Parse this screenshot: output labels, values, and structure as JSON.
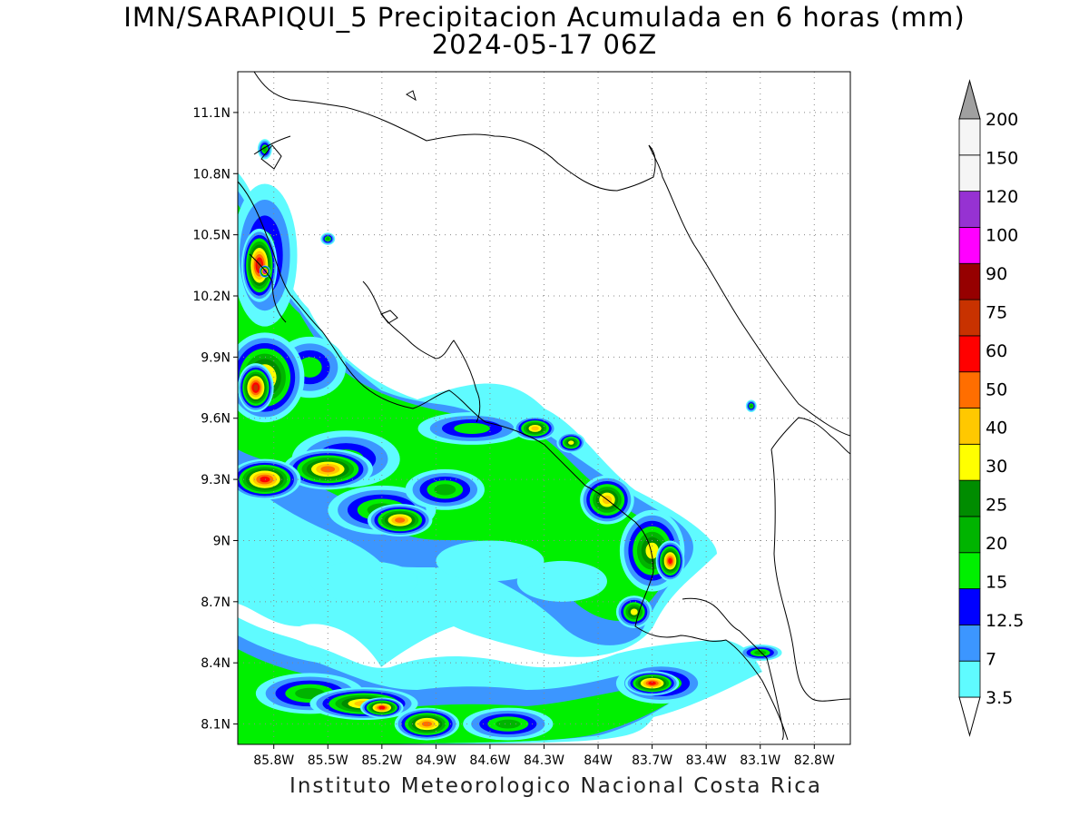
{
  "title": {
    "line1": "IMN/SARAPIQUI_5 Precipitacion Acumulada en 6 horas (mm)",
    "line2": "2024-05-17 06Z"
  },
  "footer": "Instituto Meteorologico Nacional Costa Rica",
  "axes": {
    "lon_range": [
      -86.0,
      -82.6
    ],
    "lat_range": [
      8.0,
      11.3
    ],
    "lon_ticks": [
      {
        "value": -85.8,
        "label": "85.8W"
      },
      {
        "value": -85.5,
        "label": "85.5W"
      },
      {
        "value": -85.2,
        "label": "85.2W"
      },
      {
        "value": -84.9,
        "label": "84.9W"
      },
      {
        "value": -84.6,
        "label": "84.6W"
      },
      {
        "value": -84.3,
        "label": "84.3W"
      },
      {
        "value": -84.0,
        "label": "84W"
      },
      {
        "value": -83.7,
        "label": "83.7W"
      },
      {
        "value": -83.4,
        "label": "83.4W"
      },
      {
        "value": -83.1,
        "label": "83.1W"
      },
      {
        "value": -82.8,
        "label": "82.8W"
      }
    ],
    "lat_ticks": [
      {
        "value": 8.1,
        "label": "8.1N"
      },
      {
        "value": 8.4,
        "label": "8.4N"
      },
      {
        "value": 8.7,
        "label": "8.7N"
      },
      {
        "value": 9.0,
        "label": "9N"
      },
      {
        "value": 9.3,
        "label": "9.3N"
      },
      {
        "value": 9.6,
        "label": "9.6N"
      },
      {
        "value": 9.9,
        "label": "9.9N"
      },
      {
        "value": 10.2,
        "label": "10.2N"
      },
      {
        "value": 10.5,
        "label": "10.5N"
      },
      {
        "value": 10.8,
        "label": "10.8N"
      },
      {
        "value": 11.1,
        "label": "11.1N"
      }
    ],
    "grid": "dotted"
  },
  "colorbar": {
    "orientation": "vertical",
    "placement": "right",
    "levels": [
      {
        "label": "3.5",
        "color": "#ffffff"
      },
      {
        "label": "7",
        "color": "#5ffbff"
      },
      {
        "label": "12.5",
        "color": "#3c96ff"
      },
      {
        "label": "15",
        "color": "#0000ff"
      },
      {
        "label": "20",
        "color": "#00f000"
      },
      {
        "label": "25",
        "color": "#00b400"
      },
      {
        "label": "30",
        "color": "#008c00"
      },
      {
        "label": "40",
        "color": "#ffff00"
      },
      {
        "label": "50",
        "color": "#ffc800"
      },
      {
        "label": "60",
        "color": "#ff6e00"
      },
      {
        "label": "75",
        "color": "#ff0000"
      },
      {
        "label": "90",
        "color": "#c83200"
      },
      {
        "label": "100",
        "color": "#960000"
      },
      {
        "label": "120",
        "color": "#ff00ff"
      },
      {
        "label": "150",
        "color": "#9632d2"
      },
      {
        "label": "200",
        "color": "#f5f5f5"
      }
    ],
    "top_triangle_color": "#a0a0a0",
    "bottom_triangle_color": "#ffffff"
  },
  "precip_cells": [
    {
      "lon": -85.85,
      "lat": 10.4,
      "rx": 0.18,
      "ry": 0.35,
      "level": 4
    },
    {
      "lon": -85.88,
      "lat": 10.35,
      "rx": 0.1,
      "ry": 0.18,
      "level": 11
    },
    {
      "lon": -85.85,
      "lat": 10.32,
      "rx": 0.03,
      "ry": 0.03,
      "level": 14
    },
    {
      "lon": -85.6,
      "lat": 9.85,
      "rx": 0.2,
      "ry": 0.15,
      "level": 4
    },
    {
      "lon": -85.85,
      "lat": 9.8,
      "rx": 0.22,
      "ry": 0.22,
      "level": 8
    },
    {
      "lon": -85.9,
      "lat": 9.75,
      "rx": 0.1,
      "ry": 0.12,
      "level": 11
    },
    {
      "lon": -85.4,
      "lat": 9.4,
      "rx": 0.3,
      "ry": 0.14,
      "level": 4
    },
    {
      "lon": -85.5,
      "lat": 9.35,
      "rx": 0.25,
      "ry": 0.1,
      "level": 9
    },
    {
      "lon": -85.85,
      "lat": 9.3,
      "rx": 0.2,
      "ry": 0.1,
      "level": 10
    },
    {
      "lon": -85.2,
      "lat": 9.15,
      "rx": 0.3,
      "ry": 0.12,
      "level": 5
    },
    {
      "lon": -85.1,
      "lat": 9.1,
      "rx": 0.18,
      "ry": 0.08,
      "level": 9
    },
    {
      "lon": -84.85,
      "lat": 9.25,
      "rx": 0.22,
      "ry": 0.1,
      "level": 5
    },
    {
      "lon": -84.7,
      "lat": 9.55,
      "rx": 0.3,
      "ry": 0.08,
      "level": 4
    },
    {
      "lon": -84.35,
      "lat": 9.55,
      "rx": 0.12,
      "ry": 0.06,
      "level": 8
    },
    {
      "lon": -84.15,
      "lat": 9.48,
      "rx": 0.08,
      "ry": 0.05,
      "level": 7
    },
    {
      "lon": -83.95,
      "lat": 9.2,
      "rx": 0.15,
      "ry": 0.12,
      "level": 8
    },
    {
      "lon": -83.7,
      "lat": 8.95,
      "rx": 0.18,
      "ry": 0.2,
      "level": 7
    },
    {
      "lon": -83.6,
      "lat": 8.9,
      "rx": 0.08,
      "ry": 0.1,
      "level": 10
    },
    {
      "lon": -83.8,
      "lat": 8.65,
      "rx": 0.1,
      "ry": 0.08,
      "level": 7
    },
    {
      "lon": -83.65,
      "lat": 8.3,
      "rx": 0.25,
      "ry": 0.1,
      "level": 5
    },
    {
      "lon": -83.7,
      "lat": 8.3,
      "rx": 0.15,
      "ry": 0.06,
      "level": 10
    },
    {
      "lon": -85.6,
      "lat": 8.25,
      "rx": 0.3,
      "ry": 0.1,
      "level": 5
    },
    {
      "lon": -85.3,
      "lat": 8.2,
      "rx": 0.3,
      "ry": 0.08,
      "level": 8
    },
    {
      "lon": -85.2,
      "lat": 8.18,
      "rx": 0.12,
      "ry": 0.05,
      "level": 10
    },
    {
      "lon": -84.95,
      "lat": 8.1,
      "rx": 0.18,
      "ry": 0.08,
      "level": 9
    },
    {
      "lon": -84.5,
      "lat": 8.1,
      "rx": 0.25,
      "ry": 0.08,
      "level": 5
    },
    {
      "lon": -83.1,
      "lat": 8.45,
      "rx": 0.12,
      "ry": 0.04,
      "level": 5
    },
    {
      "lon": -84.6,
      "lat": 8.9,
      "rx": 0.3,
      "ry": 0.1,
      "level": 1
    },
    {
      "lon": -84.2,
      "lat": 8.8,
      "rx": 0.25,
      "ry": 0.1,
      "level": 1
    },
    {
      "lon": -85.3,
      "lat": 8.8,
      "rx": 0.3,
      "ry": 0.1,
      "level": 1
    },
    {
      "lon": -85.85,
      "lat": 10.92,
      "rx": 0.04,
      "ry": 0.05,
      "level": 5
    },
    {
      "lon": -85.5,
      "lat": 10.48,
      "rx": 0.04,
      "ry": 0.03,
      "level": 5
    },
    {
      "lon": -83.15,
      "lat": 9.66,
      "rx": 0.03,
      "ry": 0.03,
      "level": 5
    }
  ]
}
